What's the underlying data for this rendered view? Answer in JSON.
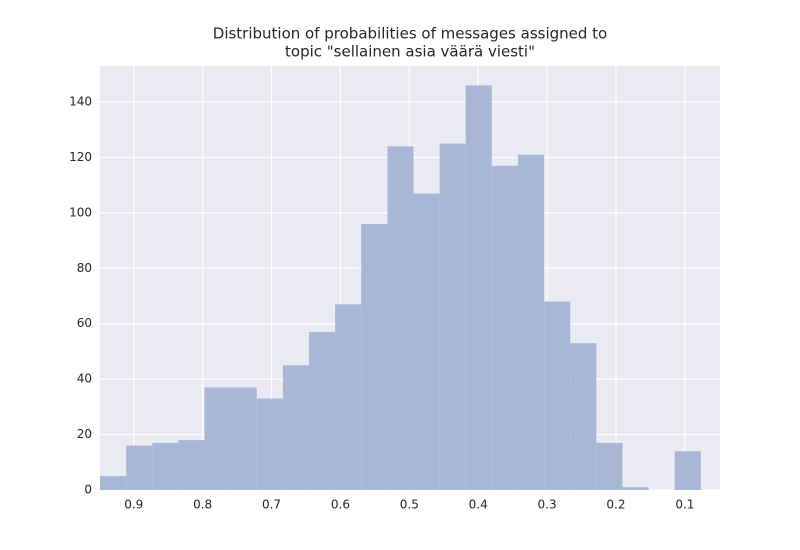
{
  "chart_data": {
    "type": "histogram",
    "title": [
      "Distribution of probabilities of messages assigned to",
      "topic \"sellainen asia väärä viesti\""
    ],
    "bins": [
      0.0768,
      0.1147,
      0.1526,
      0.1906,
      0.2285,
      0.2664,
      0.3043,
      0.3422,
      0.3802,
      0.4181,
      0.456,
      0.4939,
      0.5318,
      0.5698,
      0.6077,
      0.6456,
      0.6835,
      0.7214,
      0.7594,
      0.7973,
      0.8352,
      0.8731,
      0.911,
      0.949
    ],
    "values": [
      14,
      0,
      1,
      17,
      53,
      68,
      121,
      117,
      146,
      125,
      107,
      124,
      96,
      67,
      57,
      45,
      33,
      37,
      37,
      18,
      17,
      16,
      5
    ],
    "color": "#a9b7d6",
    "xlim": [
      0.949,
      0.049
    ],
    "xticks": [
      0.9,
      0.8,
      0.7,
      0.6,
      0.5,
      0.4,
      0.3,
      0.2,
      0.1
    ],
    "ylim": [
      0,
      153
    ],
    "yticks": [
      0,
      20,
      40,
      60,
      80,
      100,
      120,
      140
    ],
    "grid": true,
    "background": "#eaeaf2"
  }
}
